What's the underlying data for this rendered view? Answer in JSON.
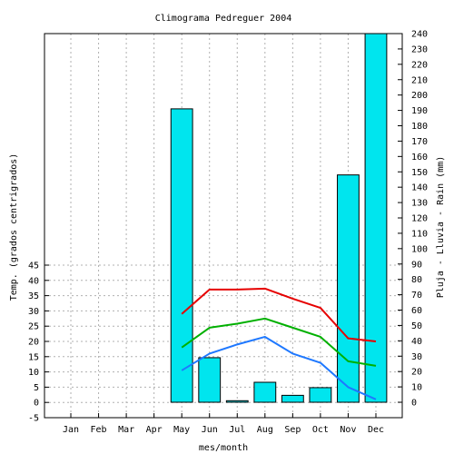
{
  "chart_data": {
    "type": "bar",
    "title": "Climograma Pedreguer 2004",
    "xlabel": "mes/month",
    "ylabel_left": "Temp. (grados centrigrados)",
    "ylabel_right": "Pluja - Lluvia - Rain (mm)",
    "categories": [
      "Jan",
      "Feb",
      "Mar",
      "Apr",
      "May",
      "Jun",
      "Jul",
      "Aug",
      "Sep",
      "Oct",
      "Nov",
      "Dec"
    ],
    "y_left": {
      "min": -5,
      "max": 45,
      "step": 5
    },
    "y_right": {
      "min": 0,
      "max": 240,
      "step": 10
    },
    "grid": true,
    "rain": {
      "axis": "right",
      "color": "#00e5ee",
      "values": [
        null,
        null,
        null,
        null,
        191,
        29,
        1,
        13,
        4.5,
        9.5,
        148,
        240
      ]
    },
    "temperature_series": [
      {
        "color": "#e60000",
        "values": [
          null,
          null,
          null,
          null,
          29,
          37,
          37,
          37.3,
          34,
          31,
          21,
          20
        ]
      },
      {
        "color": "#00b000",
        "values": [
          null,
          null,
          null,
          null,
          18,
          24.5,
          25.8,
          27.5,
          24.5,
          21.5,
          13.5,
          12
        ]
      },
      {
        "color": "#1e78ff",
        "values": [
          null,
          null,
          null,
          null,
          10.5,
          16,
          19,
          21.5,
          16,
          13,
          5,
          1
        ]
      }
    ]
  }
}
